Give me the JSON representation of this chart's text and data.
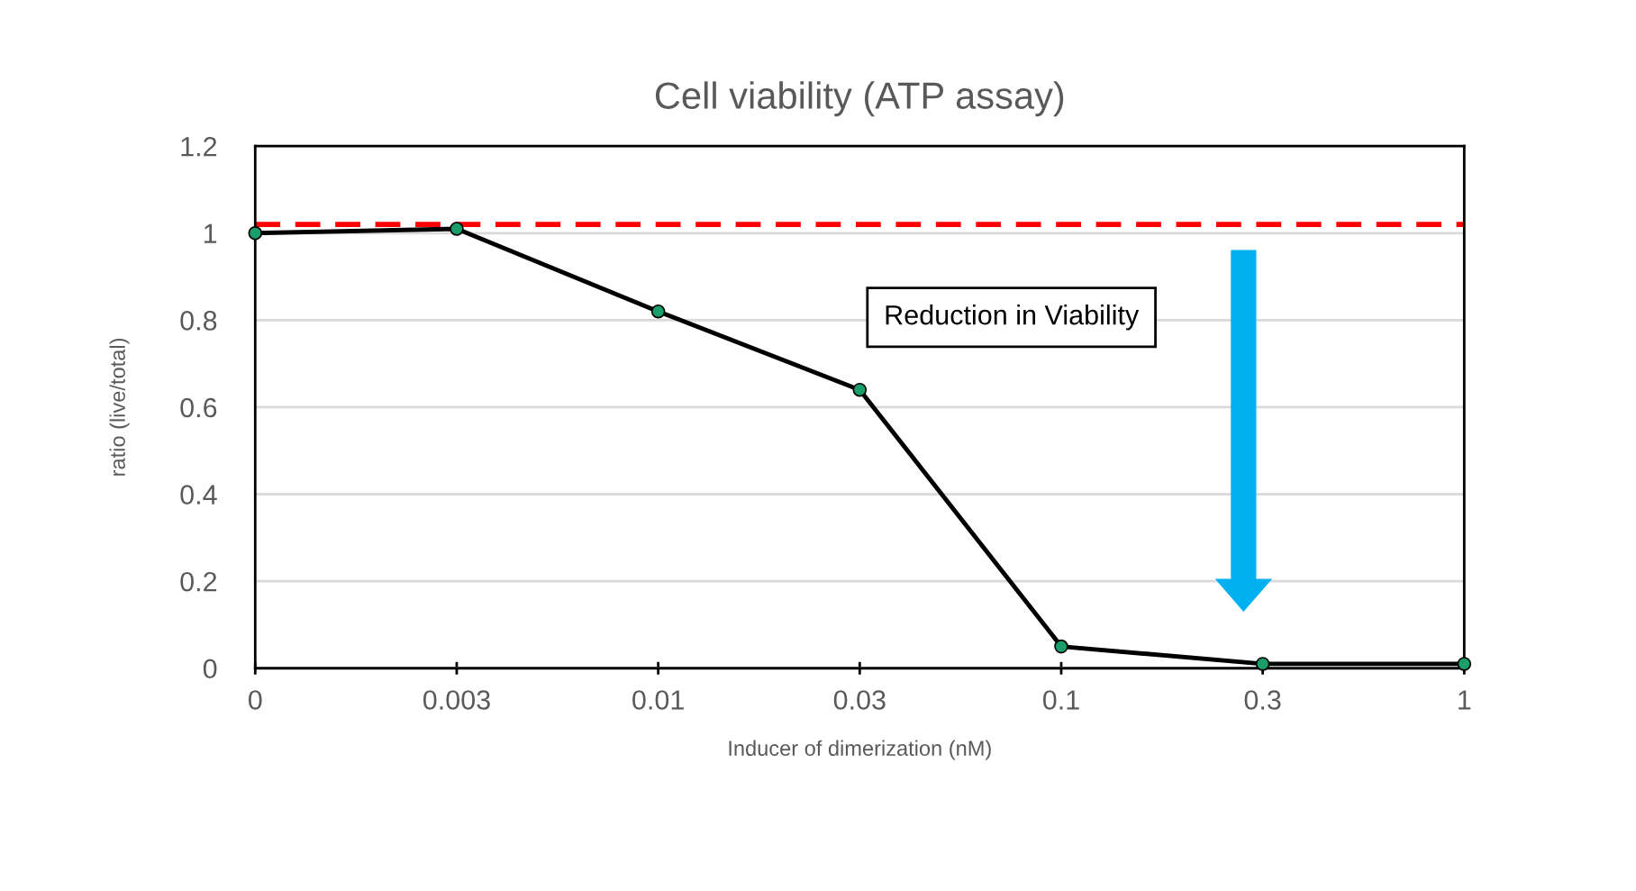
{
  "chart_data": {
    "type": "line",
    "title": "Cell viability (ATP assay)",
    "xlabel": "Inducer of dimerization (nM)",
    "ylabel": "ratio (live/total)",
    "categories": [
      "0",
      "0.003",
      "0.01",
      "0.03",
      "0.1",
      "0.3",
      "1"
    ],
    "series": [
      {
        "color": "#000000",
        "values": [
          1.0,
          1.01,
          0.82,
          0.64,
          0.05,
          0.01,
          0.01
        ]
      }
    ],
    "marker": "circle",
    "line_style": "solid",
    "ylim": [
      0,
      1.2
    ],
    "yticks": [
      0,
      0.2,
      0.4,
      0.6,
      0.8,
      1,
      1.2
    ],
    "grid": "y",
    "ref_lines": [
      {
        "axis": "y",
        "value": 1.02,
        "color": "#ff0000",
        "line_style": "dashed"
      }
    ],
    "annotations": [
      "Reduction in Viability"
    ]
  }
}
